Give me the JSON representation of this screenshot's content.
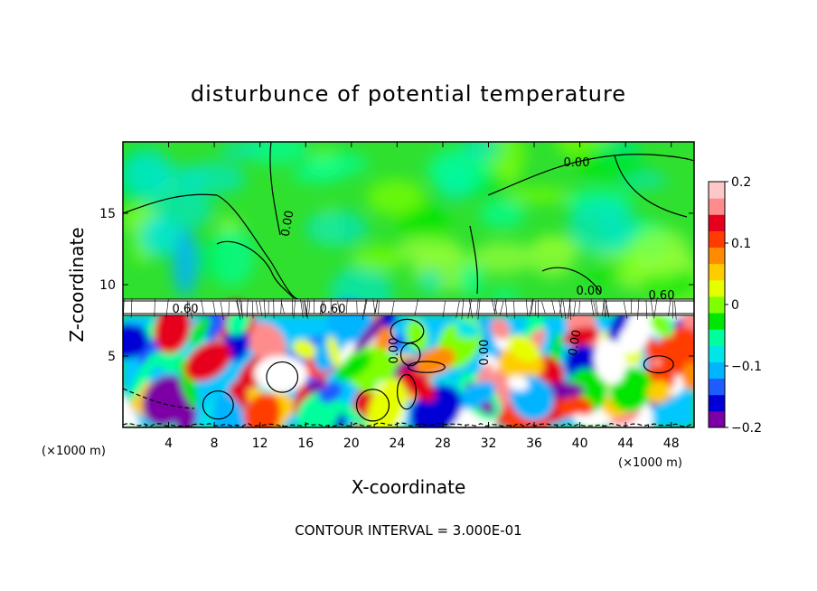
{
  "chart_data": {
    "type": "heatmap",
    "title": "disturbunce of potential temperature",
    "xlabel": "X-coordinate",
    "ylabel": "Z-coordinate",
    "x_unit_label": "(×1000 m)",
    "xlim": [
      0,
      50
    ],
    "ylim": [
      0,
      20
    ],
    "x_ticks": [
      "4",
      "8",
      "12",
      "16",
      "20",
      "24",
      "28",
      "32",
      "36",
      "40",
      "44",
      "48"
    ],
    "y_ticks": [
      "5",
      "10",
      "15"
    ],
    "colorbar": {
      "range": [
        -0.2,
        0.2
      ],
      "tick_labels": [
        "0.2",
        "0.1",
        "0",
        "−0.1",
        "−0.2"
      ],
      "colors": [
        "#7b00a6",
        "#0000d6",
        "#1e5cff",
        "#00b4ff",
        "#00e6e6",
        "#00ff9c",
        "#00e600",
        "#7fff00",
        "#e6ff00",
        "#ffcc00",
        "#ff8c00",
        "#ff3c00",
        "#e6001e",
        "#ff8c8c",
        "#ffc8c8"
      ]
    },
    "contour_interval_text": "CONTOUR INTERVAL = 3.000E-01",
    "contour_labels": [
      "0.00",
      "0.00",
      "0.00",
      "0.00",
      "0.60",
      "0.60",
      "0.60",
      "0.00",
      "0.00"
    ],
    "layers": [
      {
        "name": "upper",
        "z_range": [
          9,
          20
        ],
        "value": "≈0 (green)"
      },
      {
        "name": "band",
        "z_range": [
          7.8,
          9
        ],
        "value": "white, dense contours"
      },
      {
        "name": "lower",
        "z_range": [
          0,
          7.8
        ],
        "value": "mixed −0.2 to 0.2"
      }
    ]
  }
}
